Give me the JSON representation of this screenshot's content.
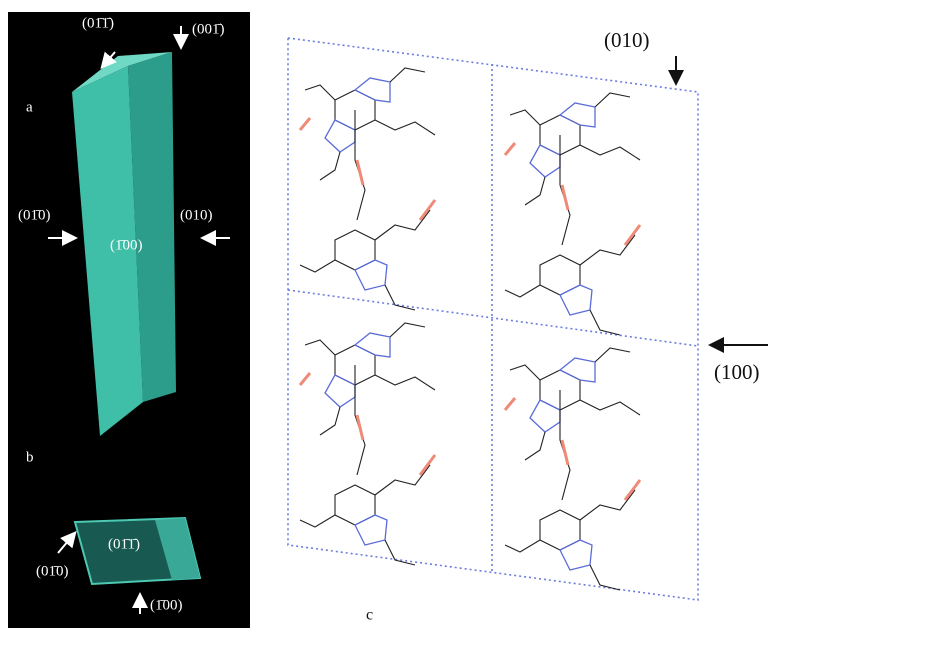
{
  "panel_a": {
    "label": "a",
    "faces": {
      "top_edge": "(01̄1̄)",
      "top": "(001̄)",
      "left": "(01̄0)",
      "right": "(010)",
      "front": "(1̄00)"
    }
  },
  "panel_b": {
    "label": "b",
    "faces": {
      "front": "(01̄1̄)",
      "left": "(01̄0)",
      "bottom": "(1̄00)"
    }
  },
  "panel_c": {
    "label": "c",
    "directions": {
      "top": "(010)",
      "right": "(100)"
    }
  }
}
